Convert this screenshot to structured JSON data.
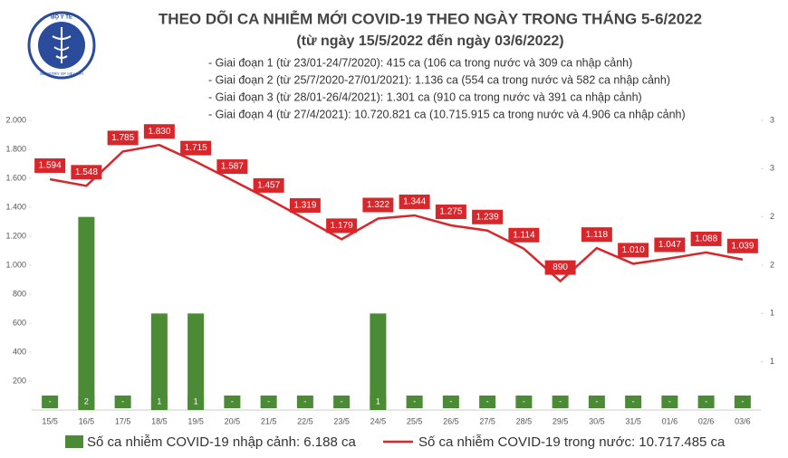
{
  "logo": {
    "top": "BỘ Y TẾ",
    "bottom": "MINISTRY OF HEALTH"
  },
  "chart_data": {
    "type": "bar-line",
    "title": "THEO DÕI CA NHIỄM MỚI COVID-19 THEO NGÀY TRONG THÁNG 5-6/2022",
    "subtitle": "(từ ngày 15/5/2022 đến ngày 03/6/2022)",
    "annotations": [
      "- Giai đoạn 1 (từ 23/01-24/7/2020): 415 ca (106 ca trong nước và 309 ca nhập cảnh)",
      "- Giai đoạn 2 (từ 25/7/2020-27/01/2021): 1.136 ca (554 ca trong nước và 582 ca nhập cảnh)",
      "- Giai đoạn 3 (từ 28/01-26/4/2021): 1.301 ca (910 ca trong nước và 391 ca nhập cảnh)",
      "- Giai đoạn 4 (từ 27/4/2021): 10.720.821 ca (10.715.915 ca trong nước và 4.906 ca nhập cảnh)"
    ],
    "categories": [
      "15/5",
      "16/5",
      "17/5",
      "18/5",
      "19/5",
      "20/5",
      "21/5",
      "22/5",
      "23/5",
      "24/5",
      "25/5",
      "26/5",
      "27/5",
      "28/5",
      "29/5",
      "30/5",
      "31/5",
      "01/6",
      "02/6",
      "03/6"
    ],
    "series": [
      {
        "name": "Số ca nhiễm COVID-19 nhập cảnh: 6.188 ca",
        "color": "#4b8b35",
        "axis": "y2",
        "kind": "bar",
        "values": [
          0,
          2,
          0,
          1,
          1,
          0,
          0,
          0,
          0,
          1,
          0,
          0,
          0,
          0,
          0,
          0,
          0,
          0,
          0,
          0
        ],
        "value_labels": [
          "-",
          "2",
          "-",
          "1",
          "1",
          "-",
          "-",
          "-",
          "-",
          "1",
          "-",
          "-",
          "-",
          "-",
          "-",
          "-",
          "-",
          "-",
          "-",
          "-"
        ]
      },
      {
        "name": "Số ca nhiễm COVID-19 trong nước: 10.717.485 ca",
        "color": "#d9262b",
        "kind": "line",
        "values": [
          1594,
          1548,
          1785,
          1830,
          1715,
          1587,
          1457,
          1319,
          1179,
          1322,
          1344,
          1275,
          1239,
          1114,
          890,
          1118,
          1010,
          1047,
          1088,
          1039
        ],
        "value_labels": [
          "1.594",
          "1.548",
          "1.785",
          "1.830",
          "1.715",
          "1.587",
          "1.457",
          "1.319",
          "1.179",
          "1.322",
          "1.344",
          "1.275",
          "1.239",
          "1.114",
          "890",
          "1.118",
          "1.010",
          "1.047",
          "1.088",
          "1.039"
        ]
      }
    ],
    "ylim": [
      0,
      2000
    ],
    "yticks": [
      {
        "value": 200,
        "label": "200"
      },
      {
        "value": 400,
        "label": "400"
      },
      {
        "value": 600,
        "label": "600"
      },
      {
        "value": 800,
        "label": "800"
      },
      {
        "value": 1000,
        "label": "1.000"
      },
      {
        "value": 1200,
        "label": "1.200"
      },
      {
        "value": 1400,
        "label": "1.400"
      },
      {
        "value": 1600,
        "label": "1.600"
      },
      {
        "value": 1800,
        "label": "1.800"
      },
      {
        "value": 2000,
        "label": "2.000"
      }
    ],
    "y2lim": [
      0,
      3
    ],
    "y2ticks": [
      {
        "value": 0.5,
        "label": "1"
      },
      {
        "value": 1,
        "label": "1"
      },
      {
        "value": 1.5,
        "label": "2"
      },
      {
        "value": 2,
        "label": "2"
      },
      {
        "value": 2.5,
        "label": "3"
      },
      {
        "value": 3,
        "label": "3"
      }
    ]
  }
}
